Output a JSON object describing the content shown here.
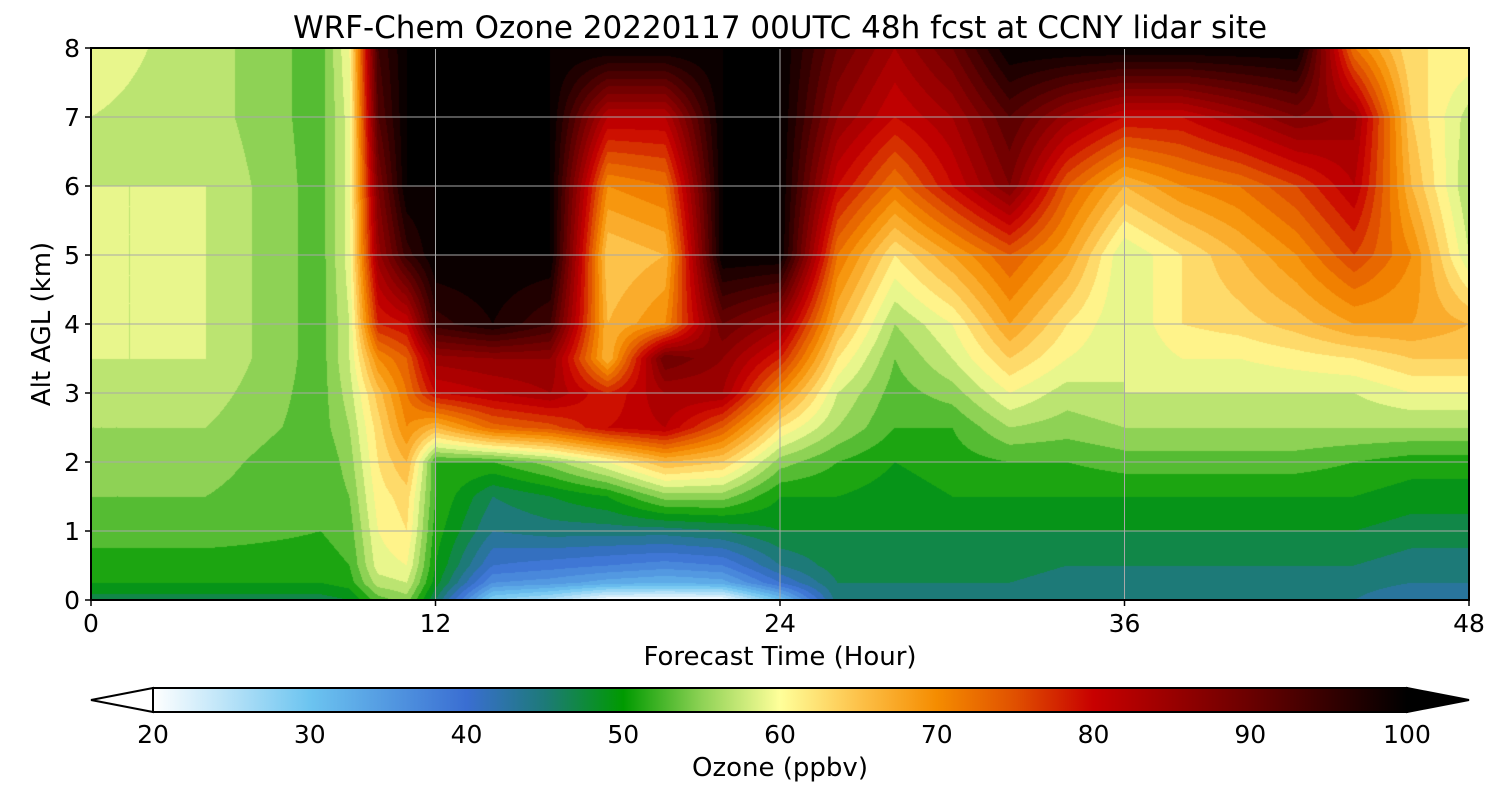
{
  "chart_data": {
    "type": "heatmap",
    "title": "WRF-Chem Ozone  20220117 00UTC 48h fcst at CCNY lidar site",
    "xlabel": "Forecast Time (Hour)",
    "ylabel": "Alt AGL (km)",
    "xlim": [
      0,
      48
    ],
    "ylim": [
      0,
      8
    ],
    "x_ticks": [
      0,
      12,
      24,
      36,
      48
    ],
    "y_ticks": [
      0,
      1,
      2,
      3,
      4,
      5,
      6,
      7,
      8
    ],
    "grid": true,
    "colorbar": {
      "label": "Ozone  (ppbv)",
      "orientation": "horizontal",
      "placement": "bottom",
      "range": [
        20,
        100
      ],
      "ticks": [
        20,
        30,
        40,
        50,
        60,
        70,
        80,
        90,
        100
      ],
      "extend": "both",
      "stops": [
        {
          "value": 20,
          "color": "#ffffff"
        },
        {
          "value": 30,
          "color": "#6cc4f0"
        },
        {
          "value": 40,
          "color": "#3a6ed2"
        },
        {
          "value": 45,
          "color": "#1d7a78"
        },
        {
          "value": 50,
          "color": "#009a00"
        },
        {
          "value": 55,
          "color": "#8ed255"
        },
        {
          "value": 60,
          "color": "#ffff9a"
        },
        {
          "value": 65,
          "color": "#fdc24a"
        },
        {
          "value": 70,
          "color": "#f58c00"
        },
        {
          "value": 75,
          "color": "#e05000"
        },
        {
          "value": 80,
          "color": "#c80000"
        },
        {
          "value": 90,
          "color": "#6a0000"
        },
        {
          "value": 100,
          "color": "#000000"
        }
      ]
    },
    "z_units": "ppbv",
    "x": [
      0,
      4,
      8,
      9,
      10,
      11,
      12,
      14,
      16,
      18,
      20,
      22,
      24,
      26,
      28,
      30,
      32,
      34,
      36,
      38,
      40,
      42,
      44,
      46,
      48
    ],
    "y": [
      0,
      0.25,
      0.5,
      1,
      1.5,
      2,
      2.5,
      3,
      3.5,
      4,
      5,
      6,
      7,
      8
    ],
    "z": [
      [
        47,
        47,
        47,
        48,
        53,
        55,
        46,
        28,
        25,
        20,
        20,
        20,
        30,
        45,
        45,
        45,
        45,
        44,
        44,
        44,
        44,
        44,
        44,
        42,
        42
      ],
      [
        50,
        50,
        50,
        51,
        57,
        58,
        49,
        36,
        35,
        33,
        32,
        33,
        40,
        46,
        46,
        46,
        46,
        45,
        45,
        45,
        45,
        45,
        45,
        44,
        44
      ],
      [
        51,
        51,
        51,
        52,
        59,
        60,
        50,
        40,
        39,
        38,
        37,
        38,
        44,
        47,
        47,
        47,
        47,
        46,
        46,
        46,
        46,
        46,
        46,
        45,
        45
      ],
      [
        53,
        53,
        52,
        53,
        60,
        62,
        51,
        44,
        45,
        45,
        45,
        46,
        48,
        48,
        48,
        48,
        48,
        48,
        48,
        48,
        48,
        48,
        48,
        47,
        47
      ],
      [
        54,
        54,
        52,
        54,
        61,
        63,
        52,
        46,
        48,
        50,
        55,
        55,
        50,
        50,
        49,
        50,
        50,
        50,
        50,
        50,
        50,
        50,
        50,
        49,
        49
      ],
      [
        55,
        55,
        52,
        55,
        62,
        66,
        52,
        52,
        55,
        60,
        66,
        64,
        55,
        52,
        50,
        51,
        52,
        52,
        53,
        53,
        53,
        53,
        52,
        51,
        51
      ],
      [
        56,
        56,
        53,
        56,
        63,
        70,
        66,
        73,
        75,
        80,
        82,
        74,
        62,
        56,
        52,
        52,
        56,
        55,
        56,
        56,
        56,
        56,
        56,
        56,
        56
      ],
      [
        57,
        57,
        53,
        57,
        65,
        72,
        80,
        82,
        84,
        78,
        84,
        84,
        70,
        58,
        53,
        55,
        60,
        57,
        58,
        58,
        58,
        58,
        58,
        60,
        60
      ],
      [
        58,
        58,
        53,
        58,
        70,
        74,
        85,
        86,
        86,
        66,
        90,
        86,
        78,
        62,
        54,
        58,
        64,
        60,
        58,
        60,
        60,
        61,
        62,
        64,
        64
      ],
      [
        58,
        58,
        53,
        58,
        78,
        80,
        95,
        98,
        94,
        66,
        70,
        90,
        85,
        66,
        56,
        60,
        68,
        62,
        58,
        62,
        63,
        65,
        68,
        68,
        66
      ],
      [
        58,
        58,
        53,
        59,
        85,
        95,
        100,
        100,
        100,
        64,
        66,
        100,
        100,
        72,
        62,
        68,
        74,
        68,
        58,
        62,
        66,
        70,
        76,
        70,
        58
      ],
      [
        58,
        58,
        53,
        59,
        88,
        100,
        100,
        100,
        100,
        70,
        72,
        100,
        100,
        80,
        72,
        80,
        88,
        74,
        66,
        70,
        72,
        76,
        82,
        66,
        56
      ],
      [
        58,
        57,
        53,
        59,
        92,
        100,
        100,
        100,
        100,
        82,
        82,
        100,
        100,
        86,
        80,
        84,
        92,
        85,
        80,
        80,
        84,
        88,
        85,
        64,
        57
      ],
      [
        59,
        57,
        53,
        60,
        94,
        100,
        100,
        100,
        100,
        100,
        100,
        100,
        100,
        90,
        84,
        90,
        100,
        100,
        100,
        100,
        100,
        100,
        72,
        62,
        62
      ]
    ]
  }
}
